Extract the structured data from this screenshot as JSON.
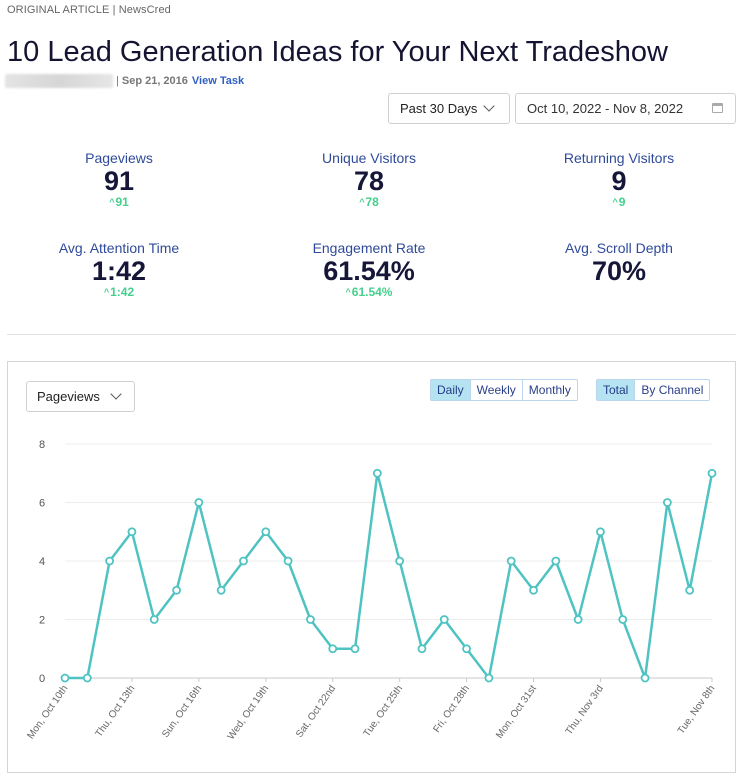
{
  "article": {
    "source_line": "ORIGINAL ARTICLE | NewsCred",
    "title": "10 Lead Generation Ideas for Your Next Tradeshow",
    "separator": "|",
    "date": "Sep 21, 2016",
    "task_link": "View Task"
  },
  "filters": {
    "range_label": "Past 30 Days",
    "date_range": "Oct 10, 2022 - Nov 8, 2022"
  },
  "stats": [
    {
      "label": "Pageviews",
      "value": "91",
      "delta": "91"
    },
    {
      "label": "Unique Visitors",
      "value": "78",
      "delta": "78"
    },
    {
      "label": "Returning Visitors",
      "value": "9",
      "delta": "9"
    },
    {
      "label": "Avg. Attention Time",
      "value": "1:42",
      "delta": "1:42"
    },
    {
      "label": "Engagement Rate",
      "value": "61.54%",
      "delta": "61.54%"
    },
    {
      "label": "Avg. Scroll Depth",
      "value": "70%",
      "delta": ""
    }
  ],
  "chart_controls": {
    "metric": "Pageviews",
    "periods": [
      "Daily",
      "Weekly",
      "Monthly"
    ],
    "active_period": "Daily",
    "modes": [
      "Total",
      "By Channel"
    ],
    "active_mode": "Total"
  },
  "colors": {
    "line": "#4fc3c2",
    "accent_active": "#b6e3f2",
    "delta_green": "#44d08c"
  },
  "chart_data": {
    "type": "line",
    "title": "",
    "xlabel": "",
    "ylabel": "",
    "ylim": [
      0,
      8
    ],
    "yticks": [
      0,
      2,
      4,
      6,
      8
    ],
    "grid": "horizontal",
    "x": [
      "Mon, Oct 10th",
      "Tue, Oct 11th",
      "Wed, Oct 12th",
      "Thu, Oct 13th",
      "Fri, Oct 14th",
      "Sat, Oct 15th",
      "Sun, Oct 16th",
      "Mon, Oct 17th",
      "Tue, Oct 18th",
      "Wed, Oct 19th",
      "Thu, Oct 20th",
      "Fri, Oct 21st",
      "Sat, Oct 22nd",
      "Sun, Oct 23rd",
      "Mon, Oct 24th",
      "Tue, Oct 25th",
      "Wed, Oct 26th",
      "Thu, Oct 27th",
      "Fri, Oct 28th",
      "Sat, Oct 29th",
      "Sun, Oct 30th",
      "Mon, Oct 31st",
      "Tue, Nov 1st",
      "Wed, Nov 2nd",
      "Thu, Nov 3rd",
      "Fri, Nov 4th",
      "Sat, Nov 5th",
      "Sun, Nov 6th",
      "Mon, Nov 7th",
      "Tue, Nov 8th"
    ],
    "tick_labels": [
      "Mon, Oct 10th",
      "Thu, Oct 13th",
      "Sun, Oct 16th",
      "Wed, Oct 19th",
      "Sat, Oct 22nd",
      "Tue, Oct 25th",
      "Fri, Oct 28th",
      "Mon, Oct 31st",
      "Thu, Nov 3rd",
      "Tue, Nov 8th"
    ],
    "series": [
      {
        "values": [
          0,
          0,
          4,
          5,
          2,
          3,
          6,
          3,
          4,
          5,
          4,
          2,
          1,
          1,
          7,
          4,
          1,
          2,
          1,
          0,
          4,
          3,
          4,
          2,
          5,
          2,
          0,
          6,
          3,
          7
        ]
      }
    ]
  }
}
